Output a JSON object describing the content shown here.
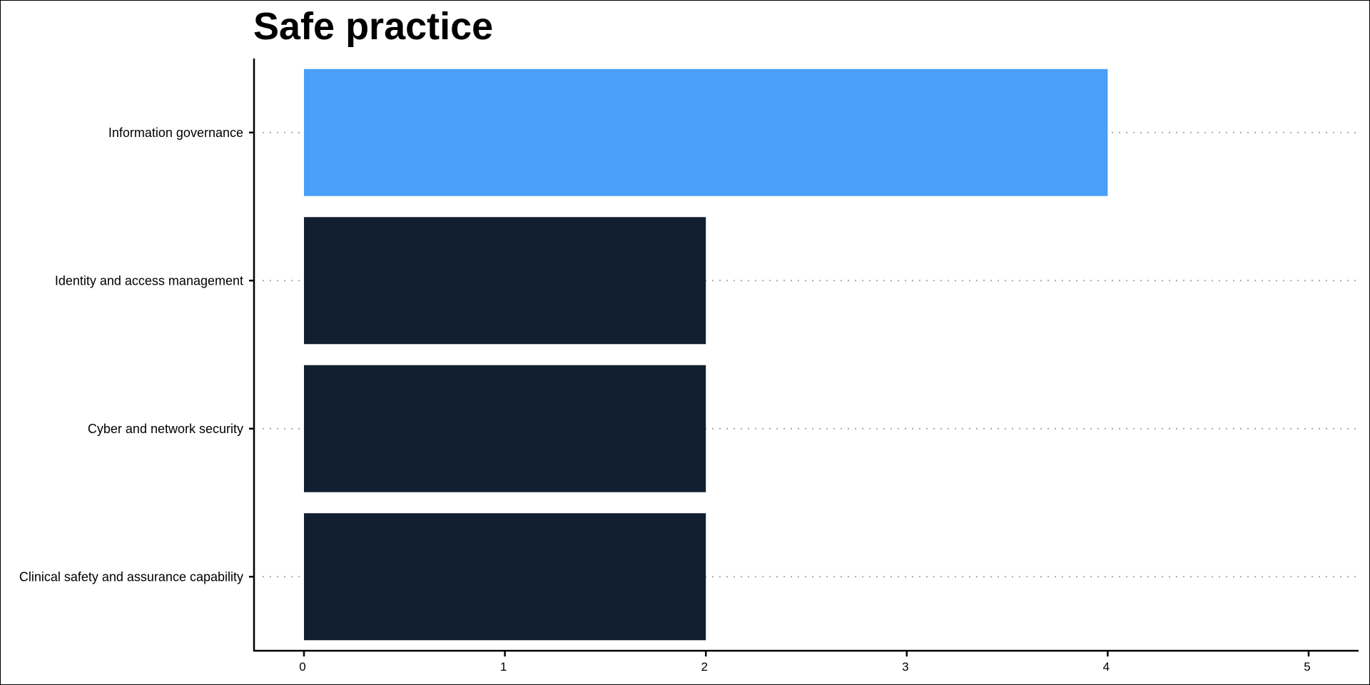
{
  "chart_data": {
    "type": "bar",
    "orientation": "horizontal",
    "title": "Safe practice",
    "xlabel": "",
    "ylabel": "",
    "categories": [
      "Information governance",
      "Identity and access management",
      "Cyber and network security",
      "Clinical safety and assurance capability"
    ],
    "values": [
      4,
      2,
      2,
      2
    ],
    "colors": [
      "#4aa0f7",
      "#111f30",
      "#111f30",
      "#111f30"
    ],
    "xlim": [
      0,
      5
    ],
    "xticks": [
      0,
      1,
      2,
      3,
      4,
      5
    ],
    "grid": "dotted horizontal lines at categories",
    "legend": "none"
  }
}
